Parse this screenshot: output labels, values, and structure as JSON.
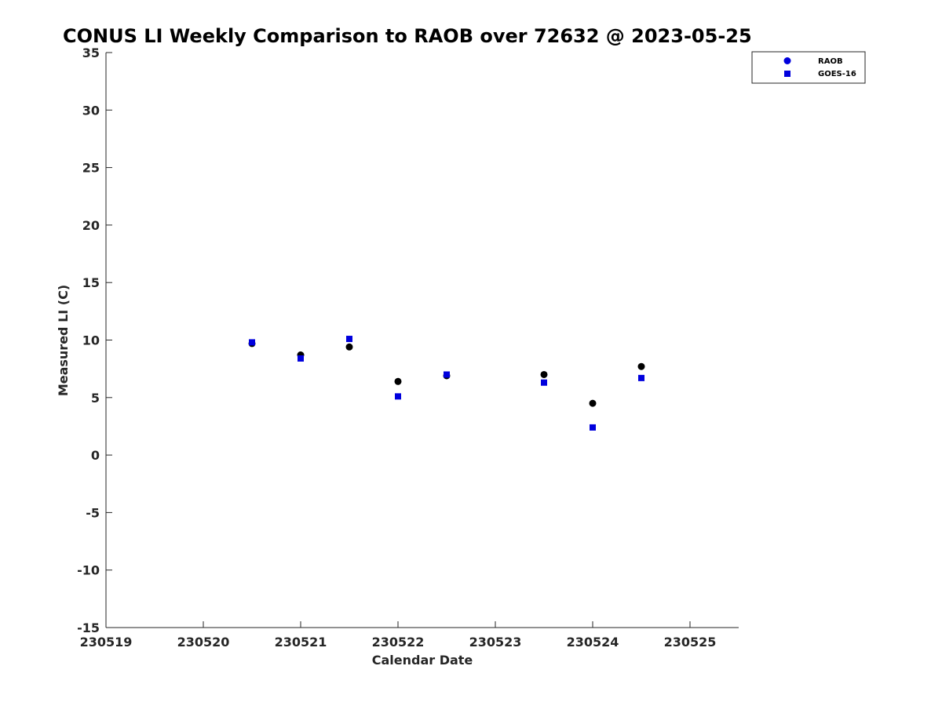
{
  "chart_data": {
    "type": "scatter",
    "title": "CONUS LI Weekly Comparison to RAOB over 72632 @ 2023-05-25",
    "xlabel": "Calendar Date",
    "ylabel": "Measured LI (C)",
    "xlim": [
      230519,
      230525.5
    ],
    "ylim": [
      -15,
      35
    ],
    "xticks": [
      230519,
      230520,
      230521,
      230522,
      230523,
      230524,
      230525
    ],
    "xtick_labels": [
      "230519",
      "230520",
      "230521",
      "230522",
      "230523",
      "230524",
      "230525"
    ],
    "yticks": [
      -15,
      -10,
      -5,
      0,
      5,
      10,
      15,
      20,
      25,
      30,
      35
    ],
    "ytick_labels": [
      "-15",
      "-10",
      "-5",
      "0",
      "5",
      "10",
      "15",
      "20",
      "25",
      "30",
      "35"
    ],
    "legend_position": "top-right",
    "legend": [
      "RAOB",
      "GOES-16"
    ],
    "series": [
      {
        "name": "RAOB",
        "marker": "circle",
        "color": "#000000",
        "legend_color": "#0000dd",
        "x": [
          230520.5,
          230521,
          230521.5,
          230522,
          230522.5,
          230523.5,
          230524,
          230524.5
        ],
        "values": [
          9.7,
          8.7,
          9.4,
          6.4,
          6.9,
          7.0,
          4.5,
          7.7
        ]
      },
      {
        "name": "GOES-16",
        "marker": "square",
        "color": "#0000dd",
        "legend_color": "#0000dd",
        "x": [
          230520.5,
          230521,
          230521.5,
          230522,
          230522.5,
          230523.5,
          230524,
          230524.5
        ],
        "values": [
          9.8,
          8.4,
          10.1,
          5.1,
          7.0,
          6.3,
          2.4,
          6.7
        ]
      }
    ]
  }
}
